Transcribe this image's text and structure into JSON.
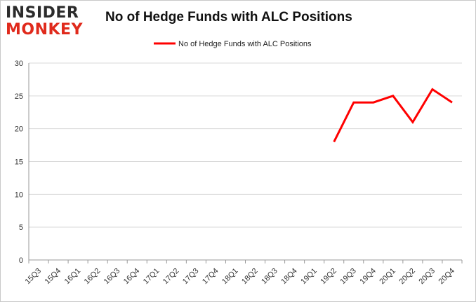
{
  "logo": {
    "line1": "INSIDER",
    "line2": "MONKEY"
  },
  "chart_data": {
    "type": "line",
    "title": "No of Hedge Funds with ALC Positions",
    "xlabel": "",
    "ylabel": "",
    "categories": [
      "15Q3",
      "15Q4",
      "16Q1",
      "16Q2",
      "16Q3",
      "16Q4",
      "17Q1",
      "17Q2",
      "17Q3",
      "17Q4",
      "18Q1",
      "18Q2",
      "18Q3",
      "18Q4",
      "19Q1",
      "19Q2",
      "19Q3",
      "19Q4",
      "20Q1",
      "20Q2",
      "20Q3",
      "20Q4"
    ],
    "series": [
      {
        "name": "No of Hedge Funds with ALC Positions",
        "color": "#ff0000",
        "values": [
          null,
          null,
          null,
          null,
          null,
          null,
          null,
          null,
          null,
          null,
          null,
          null,
          null,
          null,
          null,
          18,
          24,
          24,
          25,
          21,
          26,
          24
        ]
      }
    ],
    "ylim": [
      0,
      30
    ],
    "yticks": [
      0,
      5,
      10,
      15,
      20,
      25,
      30
    ],
    "grid": true,
    "legend": "top-center"
  }
}
